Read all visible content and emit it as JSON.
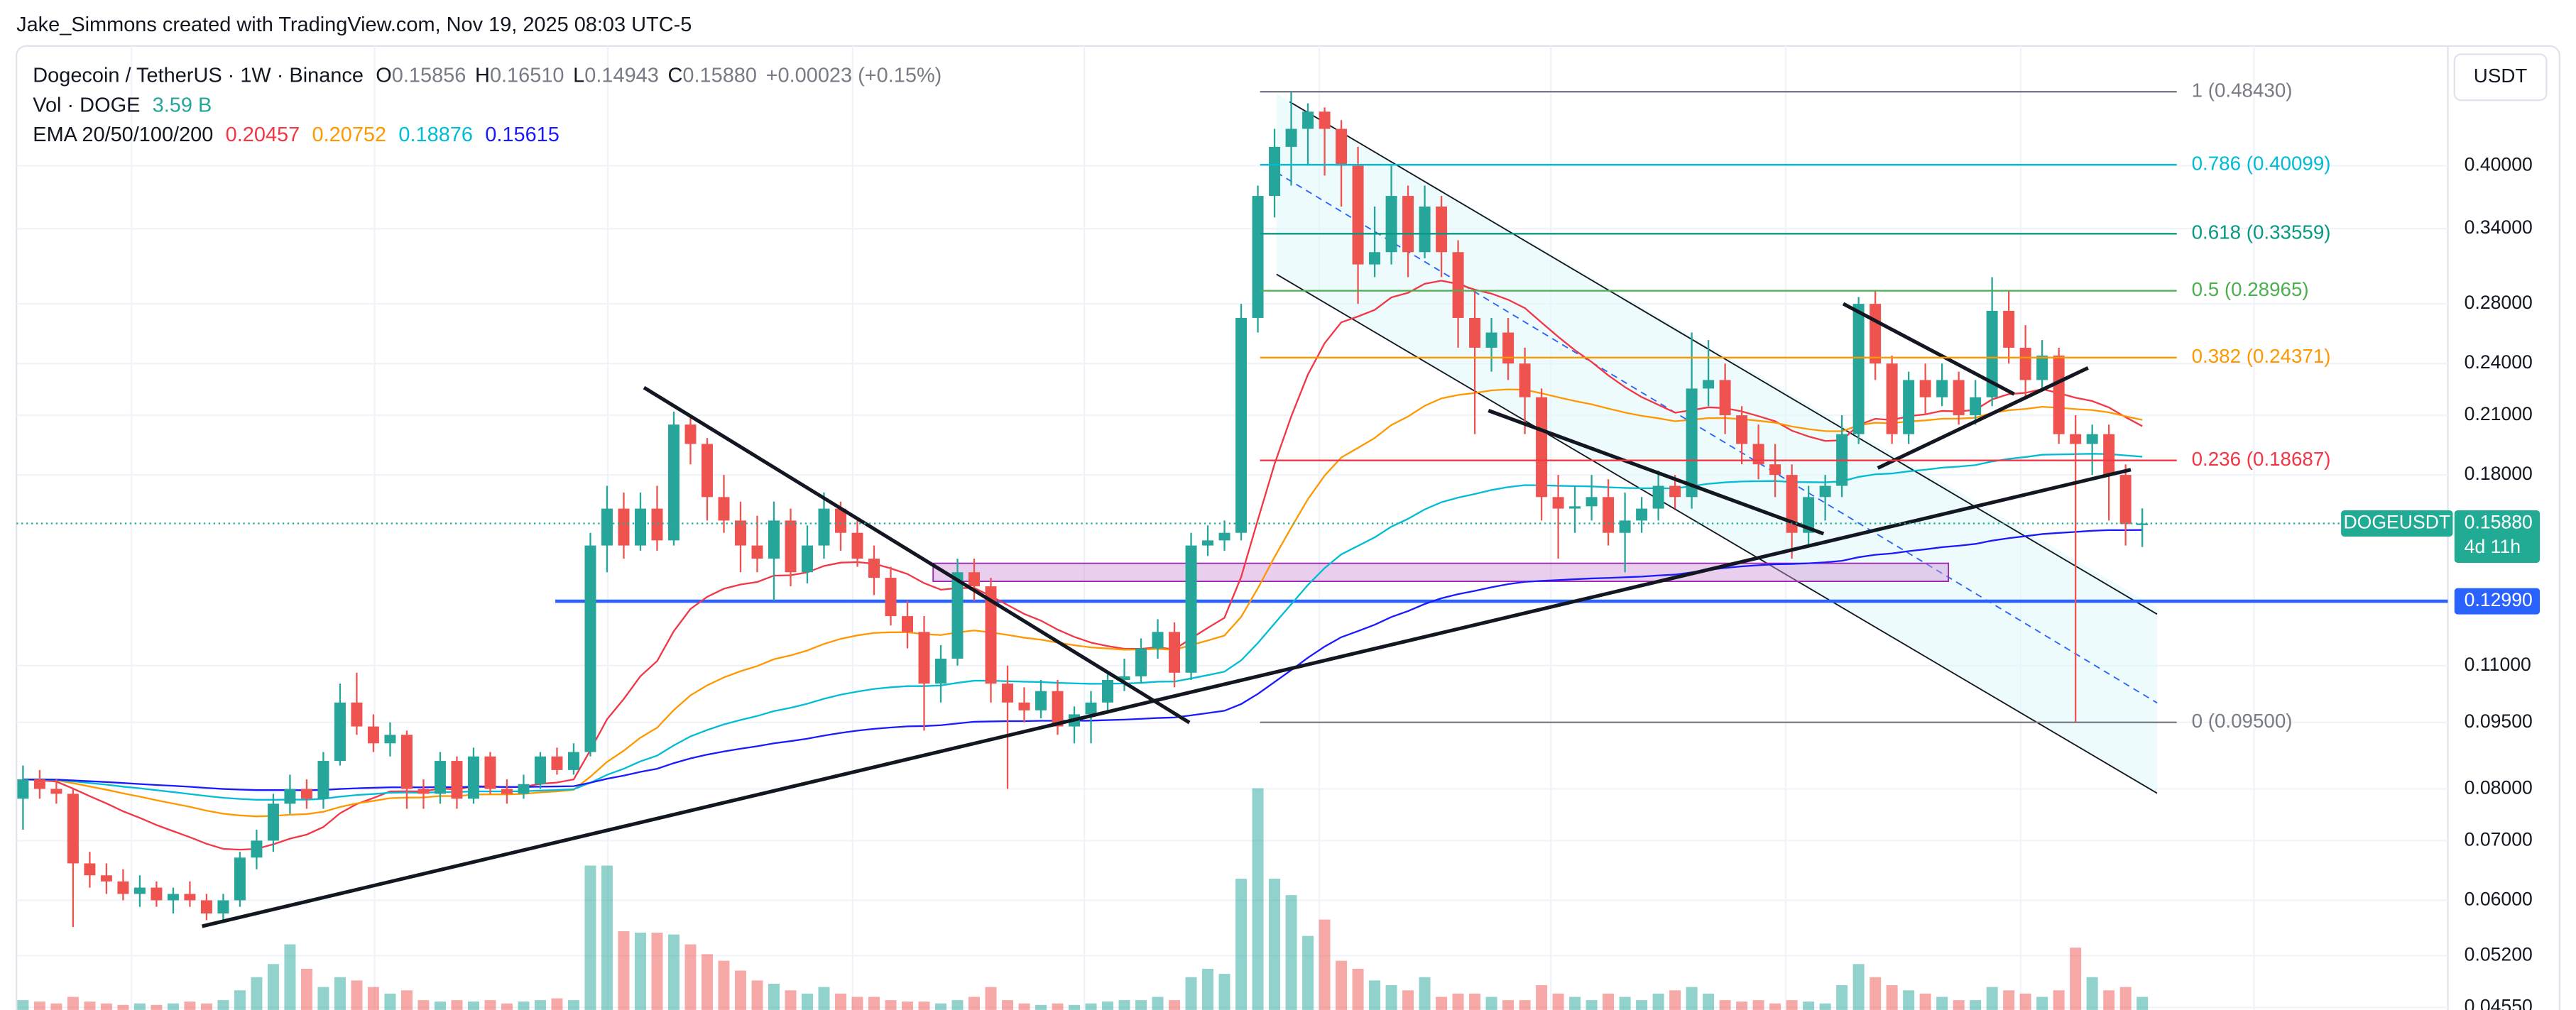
{
  "header": {
    "attribution": "Jake_Simmons created with TradingView.com, Nov 19, 2025 08:03 UTC-5"
  },
  "chart_data": {
    "type": "candlestick",
    "title": "Dogecoin / TetherUS · 1W · Binance",
    "ohlc": {
      "o_label": "O",
      "open": "0.15856",
      "h_label": "H",
      "high": "0.16510",
      "l_label": "L",
      "low": "0.14943",
      "c_label": "C",
      "close": "0.15880",
      "change": "+0.00023 (+0.15%)"
    },
    "volume_label": "Vol · DOGE",
    "volume_value": "3.59 B",
    "ema": {
      "label": "EMA 20/50/100/200",
      "periods": [
        20,
        50,
        100,
        200
      ],
      "colors": [
        "#f23645",
        "#ff9800",
        "#00bcd4",
        "#1a1aff"
      ],
      "value_labels": [
        "0.20457",
        "0.20752",
        "0.18876",
        "0.15615"
      ]
    },
    "currency": "USDT",
    "log_scale": true,
    "grid": true,
    "up_color": "#26a69a",
    "down_color": "#ef5350",
    "ylim": [
      0.0452,
      0.545
    ],
    "yticks": [
      {
        "value": 0.0455,
        "label": "0.04550"
      },
      {
        "value": 0.052,
        "label": "0.05200"
      },
      {
        "value": 0.06,
        "label": "0.06000"
      },
      {
        "value": 0.07,
        "label": "0.07000"
      },
      {
        "value": 0.08,
        "label": "0.08000"
      },
      {
        "value": 0.095,
        "label": "0.09500"
      },
      {
        "value": 0.11,
        "label": "0.11000"
      },
      {
        "value": 0.18,
        "label": "0.18000"
      },
      {
        "value": 0.21,
        "label": "0.21000"
      },
      {
        "value": 0.24,
        "label": "0.24000"
      },
      {
        "value": 0.28,
        "label": "0.28000"
      },
      {
        "value": 0.34,
        "label": "0.34000"
      },
      {
        "value": 0.4,
        "label": "0.40000"
      }
    ],
    "candles": [
      [
        0.078,
        0.085,
        0.072,
        0.082
      ],
      [
        0.082,
        0.084,
        0.078,
        0.08
      ],
      [
        0.08,
        0.082,
        0.077,
        0.079
      ],
      [
        0.079,
        0.08,
        0.056,
        0.066
      ],
      [
        0.066,
        0.068,
        0.062,
        0.064
      ],
      [
        0.064,
        0.066,
        0.061,
        0.063
      ],
      [
        0.063,
        0.065,
        0.06,
        0.061
      ],
      [
        0.061,
        0.064,
        0.059,
        0.062
      ],
      [
        0.062,
        0.063,
        0.059,
        0.06
      ],
      [
        0.06,
        0.062,
        0.058,
        0.061
      ],
      [
        0.061,
        0.063,
        0.059,
        0.06
      ],
      [
        0.06,
        0.061,
        0.057,
        0.058
      ],
      [
        0.058,
        0.061,
        0.057,
        0.06
      ],
      [
        0.06,
        0.068,
        0.059,
        0.067
      ],
      [
        0.067,
        0.072,
        0.065,
        0.07
      ],
      [
        0.07,
        0.079,
        0.068,
        0.077
      ],
      [
        0.077,
        0.083,
        0.075,
        0.08
      ],
      [
        0.08,
        0.082,
        0.076,
        0.078
      ],
      [
        0.078,
        0.088,
        0.076,
        0.086
      ],
      [
        0.086,
        0.105,
        0.085,
        0.1
      ],
      [
        0.1,
        0.108,
        0.092,
        0.094
      ],
      [
        0.094,
        0.097,
        0.088,
        0.09
      ],
      [
        0.09,
        0.095,
        0.087,
        0.092
      ],
      [
        0.092,
        0.093,
        0.076,
        0.08
      ],
      [
        0.08,
        0.082,
        0.076,
        0.079
      ],
      [
        0.079,
        0.088,
        0.077,
        0.086
      ],
      [
        0.086,
        0.087,
        0.076,
        0.078
      ],
      [
        0.078,
        0.089,
        0.077,
        0.087
      ],
      [
        0.087,
        0.088,
        0.079,
        0.08
      ],
      [
        0.08,
        0.082,
        0.077,
        0.079
      ],
      [
        0.079,
        0.083,
        0.078,
        0.081
      ],
      [
        0.081,
        0.088,
        0.08,
        0.087
      ],
      [
        0.087,
        0.089,
        0.083,
        0.084
      ],
      [
        0.084,
        0.09,
        0.083,
        0.088
      ],
      [
        0.088,
        0.155,
        0.087,
        0.15
      ],
      [
        0.15,
        0.175,
        0.14,
        0.165
      ],
      [
        0.165,
        0.172,
        0.145,
        0.15
      ],
      [
        0.15,
        0.172,
        0.148,
        0.165
      ],
      [
        0.165,
        0.175,
        0.148,
        0.152
      ],
      [
        0.152,
        0.212,
        0.15,
        0.205
      ],
      [
        0.205,
        0.21,
        0.185,
        0.195
      ],
      [
        0.195,
        0.198,
        0.16,
        0.17
      ],
      [
        0.17,
        0.18,
        0.155,
        0.16
      ],
      [
        0.16,
        0.168,
        0.14,
        0.15
      ],
      [
        0.15,
        0.162,
        0.14,
        0.145
      ],
      [
        0.145,
        0.168,
        0.13,
        0.16
      ],
      [
        0.16,
        0.165,
        0.135,
        0.14
      ],
      [
        0.14,
        0.158,
        0.136,
        0.15
      ],
      [
        0.15,
        0.172,
        0.145,
        0.165
      ],
      [
        0.165,
        0.168,
        0.148,
        0.155
      ],
      [
        0.155,
        0.16,
        0.142,
        0.145
      ],
      [
        0.145,
        0.15,
        0.132,
        0.138
      ],
      [
        0.138,
        0.142,
        0.122,
        0.125
      ],
      [
        0.125,
        0.13,
        0.115,
        0.12
      ],
      [
        0.12,
        0.125,
        0.093,
        0.105
      ],
      [
        0.105,
        0.116,
        0.1,
        0.112
      ],
      [
        0.112,
        0.145,
        0.11,
        0.14
      ],
      [
        0.14,
        0.145,
        0.13,
        0.135
      ],
      [
        0.135,
        0.138,
        0.1,
        0.105
      ],
      [
        0.105,
        0.11,
        0.08,
        0.1
      ],
      [
        0.1,
        0.104,
        0.095,
        0.098
      ],
      [
        0.098,
        0.106,
        0.096,
        0.103
      ],
      [
        0.103,
        0.106,
        0.092,
        0.094
      ],
      [
        0.094,
        0.099,
        0.09,
        0.097
      ],
      [
        0.097,
        0.103,
        0.09,
        0.1
      ],
      [
        0.1,
        0.108,
        0.098,
        0.106
      ],
      [
        0.106,
        0.112,
        0.103,
        0.107
      ],
      [
        0.107,
        0.118,
        0.105,
        0.115
      ],
      [
        0.115,
        0.124,
        0.112,
        0.12
      ],
      [
        0.12,
        0.123,
        0.104,
        0.108
      ],
      [
        0.108,
        0.155,
        0.106,
        0.15
      ],
      [
        0.15,
        0.158,
        0.146,
        0.152
      ],
      [
        0.152,
        0.16,
        0.148,
        0.155
      ],
      [
        0.155,
        0.28,
        0.152,
        0.27
      ],
      [
        0.27,
        0.38,
        0.26,
        0.37
      ],
      [
        0.37,
        0.44,
        0.35,
        0.42
      ],
      [
        0.42,
        0.4843,
        0.38,
        0.44
      ],
      [
        0.44,
        0.47,
        0.4,
        0.46
      ],
      [
        0.46,
        0.465,
        0.39,
        0.44
      ],
      [
        0.44,
        0.45,
        0.36,
        0.4
      ],
      [
        0.4,
        0.42,
        0.28,
        0.31
      ],
      [
        0.31,
        0.36,
        0.3,
        0.32
      ],
      [
        0.32,
        0.4,
        0.31,
        0.37
      ],
      [
        0.37,
        0.38,
        0.3,
        0.32
      ],
      [
        0.32,
        0.38,
        0.315,
        0.36
      ],
      [
        0.36,
        0.37,
        0.3,
        0.32
      ],
      [
        0.32,
        0.33,
        0.25,
        0.27
      ],
      [
        0.27,
        0.29,
        0.2,
        0.25
      ],
      [
        0.25,
        0.27,
        0.235,
        0.26
      ],
      [
        0.26,
        0.27,
        0.23,
        0.24
      ],
      [
        0.24,
        0.25,
        0.2,
        0.22
      ],
      [
        0.22,
        0.225,
        0.16,
        0.17
      ],
      [
        0.17,
        0.18,
        0.145,
        0.165
      ],
      [
        0.165,
        0.175,
        0.155,
        0.166
      ],
      [
        0.166,
        0.18,
        0.16,
        0.17
      ],
      [
        0.17,
        0.178,
        0.15,
        0.155
      ],
      [
        0.155,
        0.172,
        0.14,
        0.16
      ],
      [
        0.16,
        0.17,
        0.155,
        0.165
      ],
      [
        0.165,
        0.182,
        0.16,
        0.175
      ],
      [
        0.175,
        0.18,
        0.165,
        0.17
      ],
      [
        0.17,
        0.26,
        0.165,
        0.225
      ],
      [
        0.225,
        0.255,
        0.215,
        0.23
      ],
      [
        0.23,
        0.24,
        0.2,
        0.21
      ],
      [
        0.21,
        0.215,
        0.185,
        0.195
      ],
      [
        0.195,
        0.205,
        0.178,
        0.185
      ],
      [
        0.185,
        0.195,
        0.17,
        0.18
      ],
      [
        0.18,
        0.185,
        0.145,
        0.155
      ],
      [
        0.155,
        0.175,
        0.15,
        0.17
      ],
      [
        0.17,
        0.18,
        0.16,
        0.175
      ],
      [
        0.175,
        0.21,
        0.17,
        0.2
      ],
      [
        0.2,
        0.285,
        0.195,
        0.28
      ],
      [
        0.28,
        0.29,
        0.23,
        0.24
      ],
      [
        0.24,
        0.245,
        0.195,
        0.2
      ],
      [
        0.2,
        0.235,
        0.195,
        0.23
      ],
      [
        0.23,
        0.24,
        0.21,
        0.22
      ],
      [
        0.22,
        0.24,
        0.215,
        0.23
      ],
      [
        0.23,
        0.235,
        0.205,
        0.21
      ],
      [
        0.21,
        0.23,
        0.205,
        0.22
      ],
      [
        0.22,
        0.3,
        0.215,
        0.275
      ],
      [
        0.275,
        0.29,
        0.24,
        0.25
      ],
      [
        0.25,
        0.265,
        0.22,
        0.23
      ],
      [
        0.23,
        0.255,
        0.225,
        0.245
      ],
      [
        0.245,
        0.25,
        0.195,
        0.2
      ],
      [
        0.2,
        0.21,
        0.095,
        0.195
      ],
      [
        0.195,
        0.205,
        0.18,
        0.2
      ],
      [
        0.2,
        0.205,
        0.16,
        0.18
      ],
      [
        0.18,
        0.185,
        0.15,
        0.15856
      ],
      [
        0.15856,
        0.1651,
        0.14943,
        0.1588
      ]
    ],
    "volume": [
      2.7,
      2.3,
      1.8,
      3.6,
      2.3,
      1.8,
      1.4,
      1.8,
      1.4,
      1.8,
      2.3,
      1.8,
      2.7,
      5.4,
      9,
      12.6,
      18,
      11.3,
      6.3,
      9,
      8.1,
      6.3,
      4.5,
      5.4,
      2.7,
      2.3,
      2.7,
      2.3,
      2.7,
      1.8,
      2.3,
      2.7,
      3.2,
      2.7,
      39.6,
      39.6,
      21.6,
      21.2,
      21.2,
      20.7,
      18,
      15.3,
      13.5,
      10.8,
      8.1,
      7.2,
      5.4,
      4.5,
      6.3,
      4.5,
      3.6,
      3.6,
      2.7,
      2.3,
      2.3,
      1.8,
      2.7,
      3.6,
      6.3,
      2.7,
      1.8,
      1.4,
      1.8,
      1.4,
      1.8,
      2.3,
      2.7,
      2.7,
      3.6,
      2.7,
      9,
      11.3,
      9.9,
      36,
      60.8,
      36,
      31.5,
      20.3,
      24.8,
      13.5,
      11.3,
      8.1,
      6.8,
      5.4,
      9,
      3.6,
      4.5,
      4.5,
      3.6,
      2.7,
      2.7,
      6.8,
      4.5,
      3.6,
      2.7,
      4.5,
      3.6,
      2.7,
      4.5,
      5.4,
      6.3,
      4.5,
      2.7,
      2.3,
      2.7,
      1.8,
      2.7,
      2.3,
      1.8,
      6.8,
      12.6,
      9,
      6.8,
      5.4,
      4.5,
      3.6,
      2.7,
      2.7,
      6.3,
      5.4,
      4.5,
      3.6,
      5.4,
      17.1,
      9,
      5.4,
      6.3,
      3.59
    ],
    "fib": [
      {
        "label": "1 (0.48430)",
        "value": 0.4843,
        "color": "#787b86"
      },
      {
        "label": "0.786 (0.40099)",
        "value": 0.40099,
        "color": "#00bcd4"
      },
      {
        "label": "0.618 (0.33559)",
        "value": 0.33559,
        "color": "#089981"
      },
      {
        "label": "0.5 (0.28965)",
        "value": 0.28965,
        "color": "#4caf50"
      },
      {
        "label": "0.382 (0.24371)",
        "value": 0.24371,
        "color": "#ff9800"
      },
      {
        "label": "0.236 (0.18687)",
        "value": 0.18687,
        "color": "#f23645"
      },
      {
        "label": "0 (0.09500)",
        "value": 0.095,
        "color": "#787b86"
      }
    ],
    "hline": {
      "value": 0.1299,
      "label": "0.12990",
      "color": "#2962ff"
    },
    "last_price": {
      "value": 0.1588,
      "label": "0.15880",
      "countdown": "4d 11h",
      "symbol": "DOGEUSDT",
      "color": "#22ab94"
    }
  }
}
